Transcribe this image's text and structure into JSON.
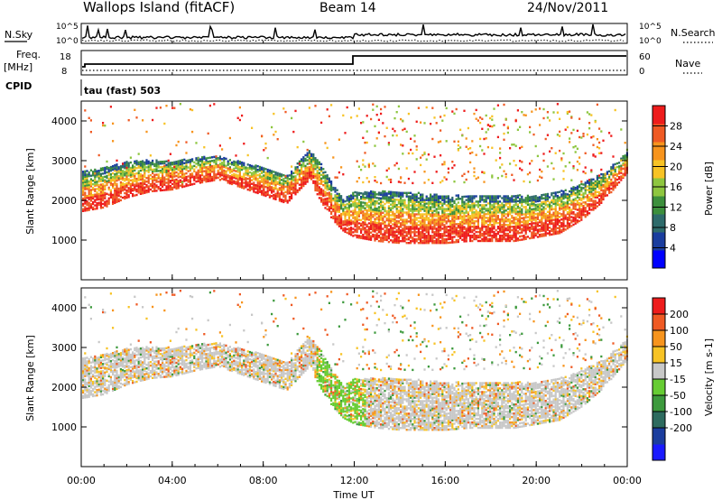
{
  "header": {
    "station": "Wallops Island (fitACF)",
    "beam": "Beam 14",
    "date": "24/Nov/2011"
  },
  "noise_panel": {
    "left_label": "N.Sky",
    "right_label": "N.Search",
    "left_ticks": [
      "10^5",
      "10^0"
    ],
    "right_ticks": [
      "10^5",
      "10^0"
    ]
  },
  "freq_panel": {
    "left_label_1": "Freq.",
    "left_label_2": "[MHz]",
    "right_label": "Nave",
    "left_ticks": [
      "18",
      "8"
    ],
    "right_ticks": [
      "60",
      "0"
    ],
    "cpid_label": "CPID",
    "cpid_text": "tau (fast) 503"
  },
  "x_axis": {
    "label": "Time UT",
    "ticks": [
      "00:00",
      "04:00",
      "08:00",
      "12:00",
      "16:00",
      "20:00",
      "00:00"
    ]
  },
  "colors": {
    "power": [
      "#0000ff",
      "#1a3d9e",
      "#2e6b6b",
      "#3c8f3c",
      "#8ec63f",
      "#f7c325",
      "#f7941d",
      "#ef5a24",
      "#ee1c1c"
    ],
    "velocity": [
      "#1a1aff",
      "#1b3d9e",
      "#2e6b5f",
      "#3d9a3d",
      "#66cc33",
      "#c8c8c8",
      "#f7c325",
      "#f7941d",
      "#ef5a24",
      "#ee1c1c"
    ]
  },
  "chart_data": [
    {
      "type": "heatmap",
      "name": "power",
      "ylabel": "Slant Range [km]",
      "y_ticks": [
        "1000",
        "2000",
        "3000",
        "4000"
      ],
      "ylim": [
        0,
        4500
      ],
      "xlim_hours": [
        0,
        24
      ],
      "colorbar_label": "Power [dB]",
      "colorbar_ticks": [
        "28",
        "24",
        "20",
        "16",
        "12",
        "8",
        "4"
      ],
      "colorbar_range": [
        0,
        32
      ],
      "echo_band_km": [
        [
          0,
          1700,
          2700
        ],
        [
          1,
          1800,
          2800
        ],
        [
          2,
          2050,
          2950
        ],
        [
          3,
          2200,
          3000
        ],
        [
          4,
          2250,
          2950
        ],
        [
          5,
          2400,
          3050
        ],
        [
          6,
          2500,
          3100
        ],
        [
          7,
          2300,
          2950
        ],
        [
          8,
          2100,
          2800
        ],
        [
          9,
          1900,
          2600
        ],
        [
          10,
          2500,
          3250
        ],
        [
          10.5,
          1950,
          2900
        ],
        [
          11,
          1500,
          2400
        ],
        [
          11.5,
          1200,
          2000
        ],
        [
          12,
          1050,
          2200
        ],
        [
          13,
          950,
          2200
        ],
        [
          14,
          900,
          2200
        ],
        [
          15,
          900,
          2150
        ],
        [
          16,
          900,
          2100
        ],
        [
          17,
          950,
          2100
        ],
        [
          18,
          950,
          2100
        ],
        [
          19,
          950,
          2100
        ],
        [
          20,
          1050,
          2100
        ],
        [
          21,
          1150,
          2200
        ],
        [
          22,
          1500,
          2400
        ],
        [
          23,
          2000,
          2700
        ],
        [
          24,
          2700,
          3200
        ]
      ]
    },
    {
      "type": "heatmap",
      "name": "velocity",
      "ylabel": "Slant Range [km]",
      "y_ticks": [
        "1000",
        "2000",
        "3000",
        "4000"
      ],
      "ylim": [
        0,
        4500
      ],
      "xlim_hours": [
        0,
        24
      ],
      "colorbar_label": "Velocity [m s-1]",
      "colorbar_ticks": [
        "200",
        "100",
        "50",
        "15",
        "-15",
        "-50",
        "-100",
        "-200"
      ],
      "colorbar_range": [
        -250,
        250
      ]
    }
  ]
}
